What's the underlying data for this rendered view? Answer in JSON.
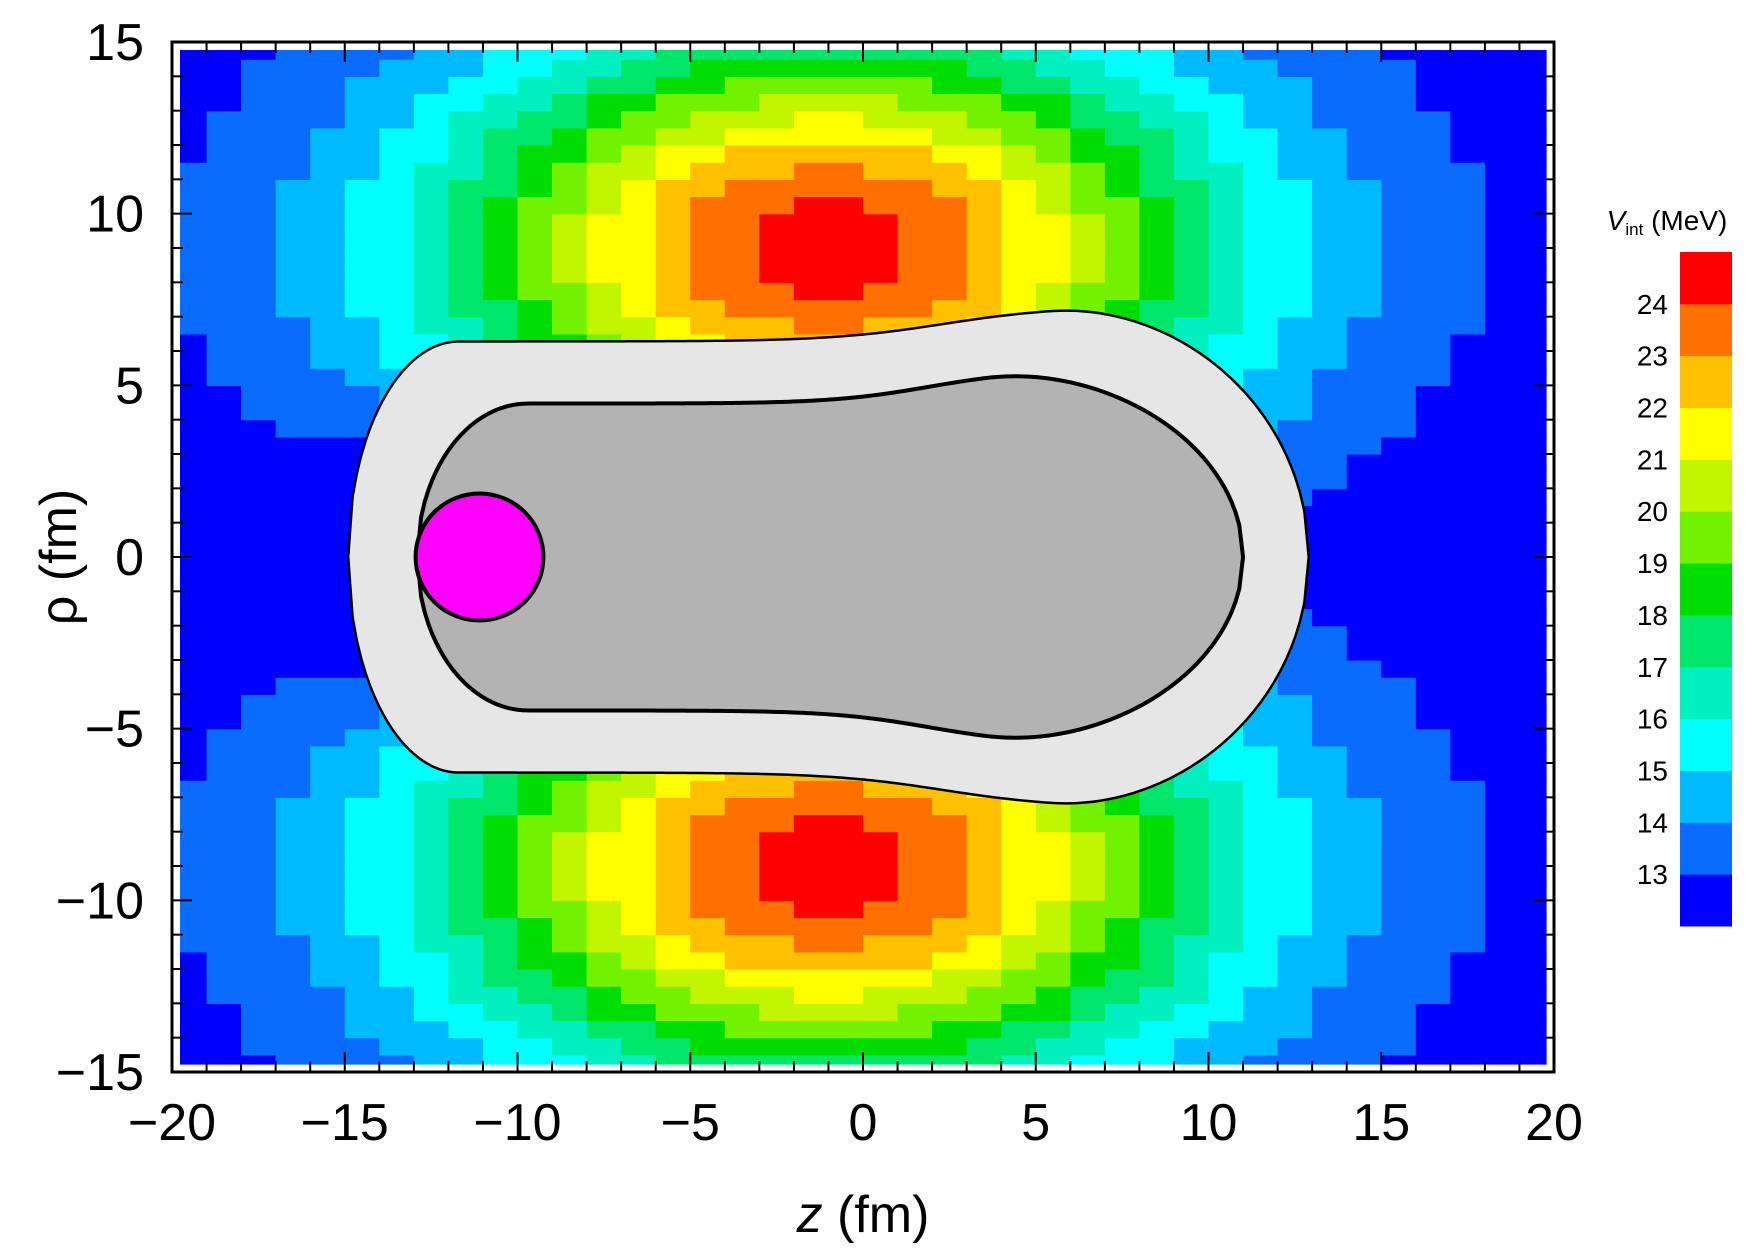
{
  "chart_data": {
    "type": "heatmap",
    "title": "",
    "xlabel": {
      "var": "z",
      "unit": " (fm)"
    },
    "ylabel": "ρ (fm)",
    "xlim": [
      -20,
      20
    ],
    "ylim": [
      -15,
      15
    ],
    "x_ticks": [
      -20,
      -15,
      -10,
      -5,
      0,
      5,
      10,
      15,
      20
    ],
    "y_ticks": [
      -15,
      -10,
      -5,
      0,
      5,
      10,
      15
    ],
    "x_tick_labels": [
      "−20",
      "−15",
      "−10",
      "−5",
      "0",
      "5",
      "10",
      "15",
      "20"
    ],
    "y_tick_labels": [
      "−15",
      "−10",
      "−5",
      "0",
      "5",
      "10",
      "15"
    ],
    "grid": false,
    "cell_size": [
      1.0,
      0.5
    ],
    "colorbar": {
      "title": {
        "var": "V",
        "sub": "int",
        "unit": " (MeV)"
      },
      "placement": "right",
      "levels": [
        12,
        13,
        14,
        15,
        16,
        17,
        18,
        19,
        20,
        21,
        22,
        23,
        24,
        25
      ],
      "tick_labels": [
        "13",
        "14",
        "15",
        "16",
        "17",
        "18",
        "19",
        "20",
        "21",
        "22",
        "23",
        "24"
      ],
      "colors": [
        "#0000ff",
        "#0a6cff",
        "#00baff",
        "#00ffff",
        "#00f0c0",
        "#00e66a",
        "#00dd00",
        "#73f200",
        "#c2f500",
        "#ffff00",
        "#ffc000",
        "#ff7000",
        "#ff0000"
      ]
    },
    "field": {
      "description_params": {
        "peak_z": -1,
        "peak_rho": 9,
        "peak_value": 24.5,
        "corner_value": 12.2,
        "sigma_z": 11.5,
        "sigma_rho": 6.5
      }
    },
    "overlays": {
      "outer_nucleus_boundary": {
        "fill": "#e6e6e6",
        "front_z": -14.9,
        "back_z": 12.9,
        "max_rho": 7.3
      },
      "inner_nucleus_boundary": {
        "fill": "#b3b3b3",
        "front_z": -12.9,
        "back_z": 11.0,
        "max_rho": 5.45
      },
      "projectile": {
        "fill": "#ff00ff",
        "center_z": -11.1,
        "center_rho": 0,
        "radius": 1.85
      }
    }
  }
}
